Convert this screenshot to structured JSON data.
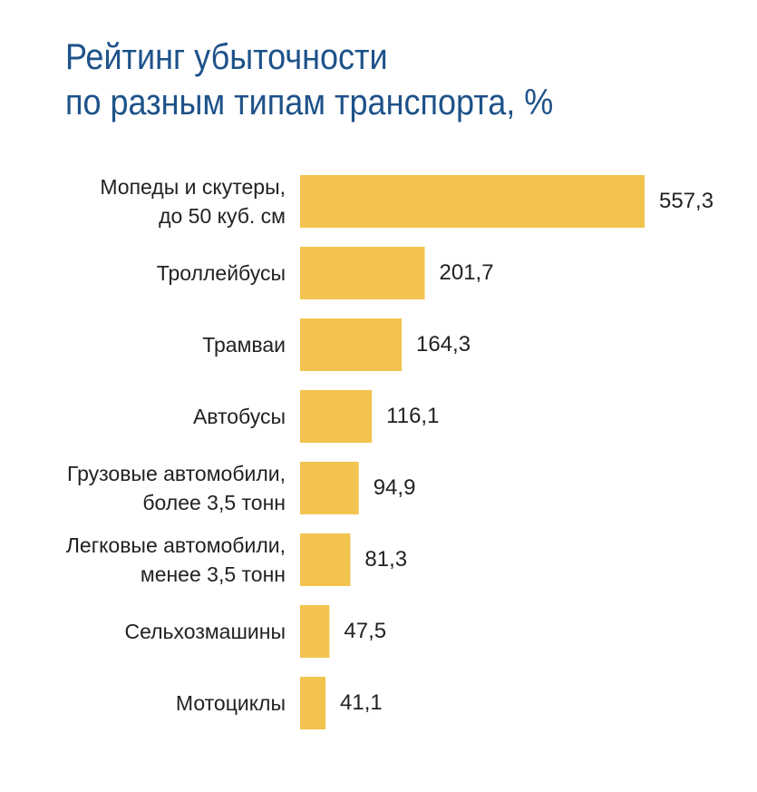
{
  "chart_data": {
    "type": "bar",
    "orientation": "horizontal",
    "title": "Рейтинг убыточности\nпо разным типам транспорта, %",
    "categories": [
      "Мопеды и скутеры,\nдо 50 куб. см",
      "Троллейбусы",
      "Трамваи",
      "Автобусы",
      "Грузовые автомобили,\nболее 3,5 тонн",
      "Легковые автомобили,\nменее 3,5 тонн",
      "Сельхозмашины",
      "Мотоциклы"
    ],
    "values": [
      557.3,
      201.7,
      164.3,
      116.1,
      94.9,
      81.3,
      47.5,
      41.1
    ],
    "value_labels": [
      "557,3",
      "201,7",
      "164,3",
      "116,1",
      "94,9",
      "81,3",
      "47,5",
      "41,1"
    ],
    "color": "#f2c44f"
  }
}
